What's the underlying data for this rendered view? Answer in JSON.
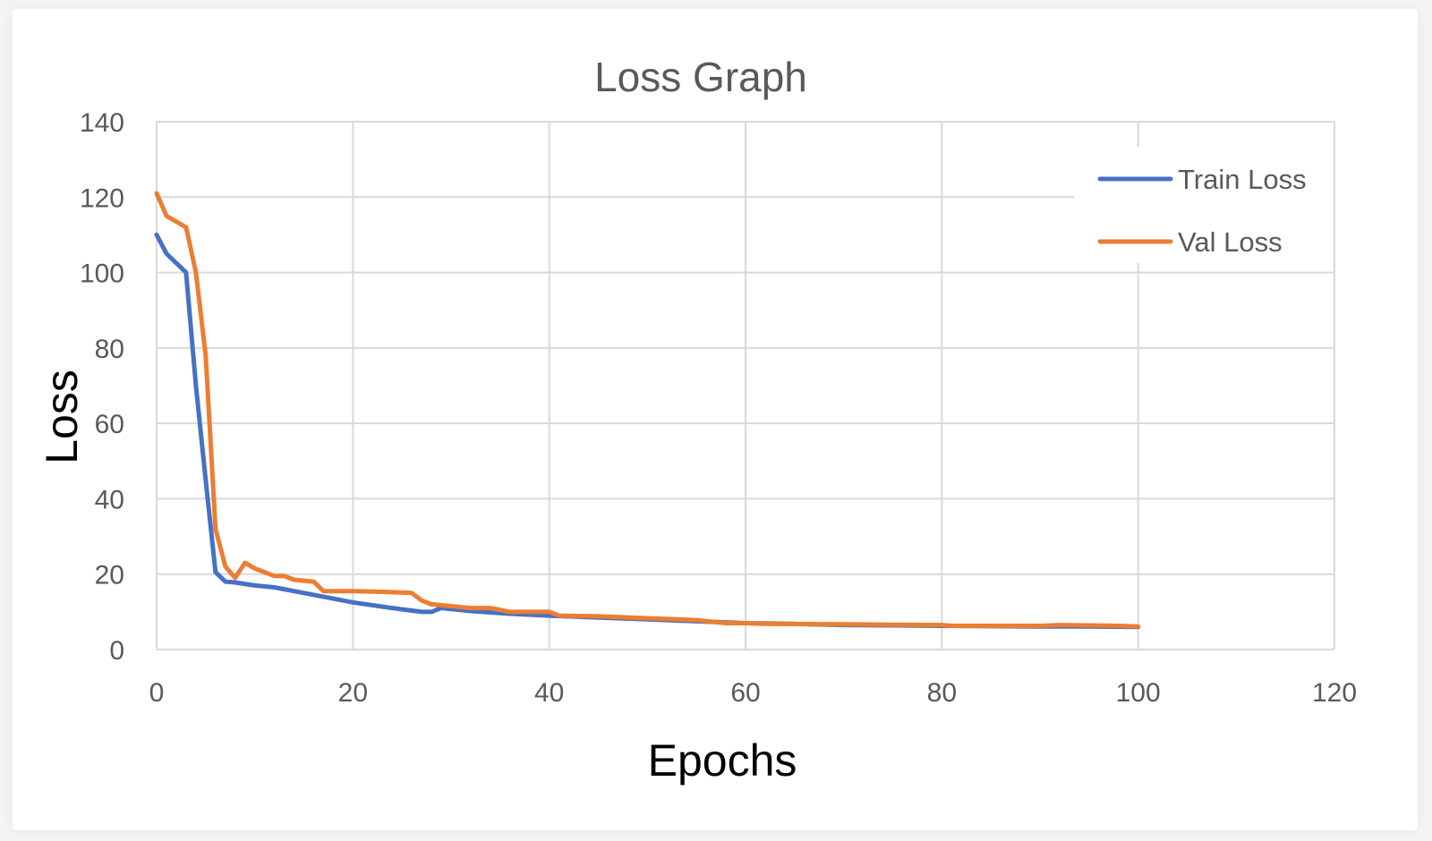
{
  "chart_data": {
    "type": "line",
    "title": "Loss Graph",
    "xlabel": "Epochs",
    "ylabel": "Loss",
    "xlim": [
      0,
      120
    ],
    "ylim": [
      0,
      140
    ],
    "x_ticks": [
      "0",
      "20",
      "40",
      "60",
      "80",
      "100",
      "120"
    ],
    "y_ticks": [
      "0",
      "20",
      "40",
      "60",
      "80",
      "100",
      "120",
      "140"
    ],
    "grid": true,
    "legend_position": "top-right",
    "series": [
      {
        "name": "Train Loss",
        "color": "#4472C4",
        "points": [
          [
            0,
            110
          ],
          [
            1,
            105
          ],
          [
            3,
            100
          ],
          [
            4,
            70
          ],
          [
            5,
            45
          ],
          [
            6,
            20.5
          ],
          [
            7,
            18
          ],
          [
            8,
            17.8
          ],
          [
            10,
            17
          ],
          [
            12,
            16.5
          ],
          [
            15,
            15
          ],
          [
            18,
            13.5
          ],
          [
            20,
            12.5
          ],
          [
            24,
            11
          ],
          [
            27,
            10
          ],
          [
            28,
            10
          ],
          [
            29,
            11
          ],
          [
            32,
            10.2
          ],
          [
            36,
            9.5
          ],
          [
            40,
            9
          ],
          [
            45,
            8.5
          ],
          [
            50,
            8
          ],
          [
            55,
            7.5
          ],
          [
            60,
            7
          ],
          [
            65,
            6.8
          ],
          [
            70,
            6.5
          ],
          [
            75,
            6.4
          ],
          [
            80,
            6.3
          ],
          [
            85,
            6.2
          ],
          [
            90,
            6.1
          ],
          [
            95,
            6.1
          ],
          [
            100,
            6
          ]
        ]
      },
      {
        "name": "Val Loss",
        "color": "#ED7D31",
        "points": [
          [
            0,
            121
          ],
          [
            1,
            115
          ],
          [
            3,
            112
          ],
          [
            4,
            100
          ],
          [
            5,
            78
          ],
          [
            6,
            32
          ],
          [
            7,
            22
          ],
          [
            8,
            19
          ],
          [
            9,
            23
          ],
          [
            10,
            21.5
          ],
          [
            12,
            19.5
          ],
          [
            13,
            19.5
          ],
          [
            14,
            18.5
          ],
          [
            16,
            18
          ],
          [
            17,
            15.5
          ],
          [
            20,
            15.5
          ],
          [
            23,
            15.3
          ],
          [
            26,
            15
          ],
          [
            27,
            13
          ],
          [
            28,
            12
          ],
          [
            30,
            11.5
          ],
          [
            32,
            11
          ],
          [
            34,
            11
          ],
          [
            36,
            10
          ],
          [
            40,
            10
          ],
          [
            41,
            9
          ],
          [
            45,
            8.8
          ],
          [
            50,
            8.3
          ],
          [
            55,
            7.8
          ],
          [
            58,
            7
          ],
          [
            60,
            7
          ],
          [
            62,
            6.8
          ],
          [
            70,
            6.7
          ],
          [
            75,
            6.6
          ],
          [
            80,
            6.5
          ],
          [
            81,
            6.3
          ],
          [
            85,
            6.3
          ],
          [
            90,
            6.3
          ],
          [
            92,
            6.5
          ],
          [
            95,
            6.4
          ],
          [
            98,
            6.3
          ],
          [
            100,
            6.1
          ]
        ]
      }
    ]
  }
}
